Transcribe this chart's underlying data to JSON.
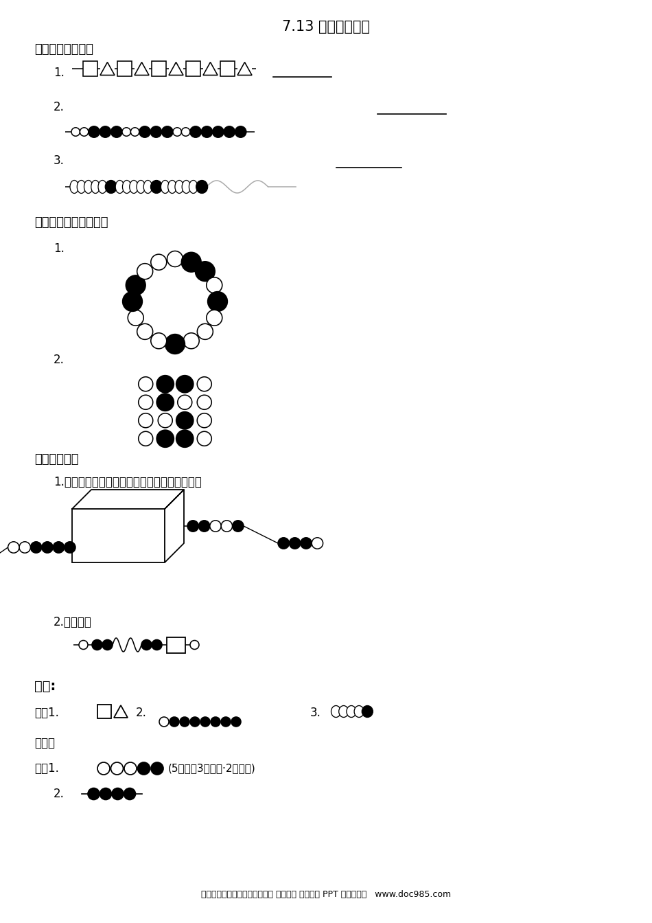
{
  "title": "7.13 用规律穿珠子",
  "bg_color": "#ffffff",
  "section1_title": "一、我会接着穿。",
  "section2_title": "二、找规律涂上阴影。",
  "section3_title": "三、我会做。",
  "s3_q1": "1.猜猜盒子里有几个球？几个白球？几个黑球？",
  "s3_q2": "2.穿珠子。",
  "ans_title": "答案:",
  "ans1": "一、1.",
  "ans1_2": "2.",
  "ans1_3": "3.",
  "ans2": "二、略",
  "ans3": "三、1.○○○●●(5个球，3个白球·2个黑球)",
  "ans3_2": "2.",
  "footer": "小学、初中、高中各种试卷真题 知识归纳 文案合同 PPT 等免费下载   www.doc985.com"
}
